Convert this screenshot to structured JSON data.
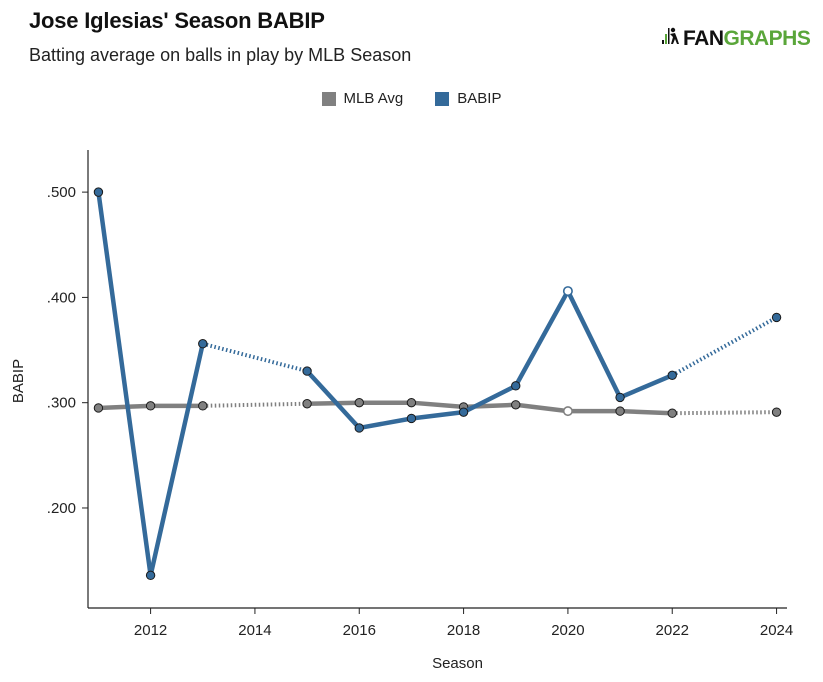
{
  "header": {
    "title": "Jose Iglesias' Season BABIP",
    "subtitle": "Batting average on balls in play by MLB Season",
    "logo_text_a": "FAN",
    "logo_text_b": "GRAPHS"
  },
  "legend": [
    {
      "label": "MLB Avg",
      "color": "#808080"
    },
    {
      "label": "BABIP",
      "color": "#346a9a"
    }
  ],
  "chart_data": {
    "type": "line",
    "title": "Jose Iglesias' Season BABIP",
    "subtitle": "Batting average on balls in play by MLB Season",
    "xlabel": "Season",
    "ylabel": "BABIP",
    "xlim": [
      2010.8,
      2024.2
    ],
    "ylim": [
      0.105,
      0.54
    ],
    "x_ticks": [
      2012,
      2014,
      2016,
      2018,
      2020,
      2022,
      2024
    ],
    "x_tick_labels": [
      "2012",
      "2014",
      "2016",
      "2018",
      "2020",
      "2022",
      "2024"
    ],
    "y_ticks": [
      0.2,
      0.3,
      0.4,
      0.5
    ],
    "y_tick_labels": [
      ".200",
      ".300",
      ".400",
      ".500"
    ],
    "legend_position": "top-center",
    "grid": false,
    "series": [
      {
        "name": "MLB Avg",
        "color": "#808080",
        "points": [
          {
            "x": 2011,
            "y": 0.295
          },
          {
            "x": 2012,
            "y": 0.297
          },
          {
            "x": 2013,
            "y": 0.297
          },
          {
            "x": 2015,
            "y": 0.299
          },
          {
            "x": 2016,
            "y": 0.3
          },
          {
            "x": 2017,
            "y": 0.3
          },
          {
            "x": 2018,
            "y": 0.296
          },
          {
            "x": 2019,
            "y": 0.298
          },
          {
            "x": 2020,
            "y": 0.292
          },
          {
            "x": 2021,
            "y": 0.292
          },
          {
            "x": 2022,
            "y": 0.29
          },
          {
            "x": 2024,
            "y": 0.291
          }
        ]
      },
      {
        "name": "BABIP",
        "color": "#346a9a",
        "points": [
          {
            "x": 2011,
            "y": 0.5
          },
          {
            "x": 2012,
            "y": 0.136
          },
          {
            "x": 2013,
            "y": 0.356
          },
          {
            "x": 2015,
            "y": 0.33
          },
          {
            "x": 2016,
            "y": 0.276
          },
          {
            "x": 2017,
            "y": 0.285
          },
          {
            "x": 2018,
            "y": 0.291
          },
          {
            "x": 2019,
            "y": 0.316
          },
          {
            "x": 2020,
            "y": 0.406
          },
          {
            "x": 2021,
            "y": 0.305
          },
          {
            "x": 2022,
            "y": 0.326
          },
          {
            "x": 2024,
            "y": 0.381
          }
        ]
      }
    ]
  }
}
